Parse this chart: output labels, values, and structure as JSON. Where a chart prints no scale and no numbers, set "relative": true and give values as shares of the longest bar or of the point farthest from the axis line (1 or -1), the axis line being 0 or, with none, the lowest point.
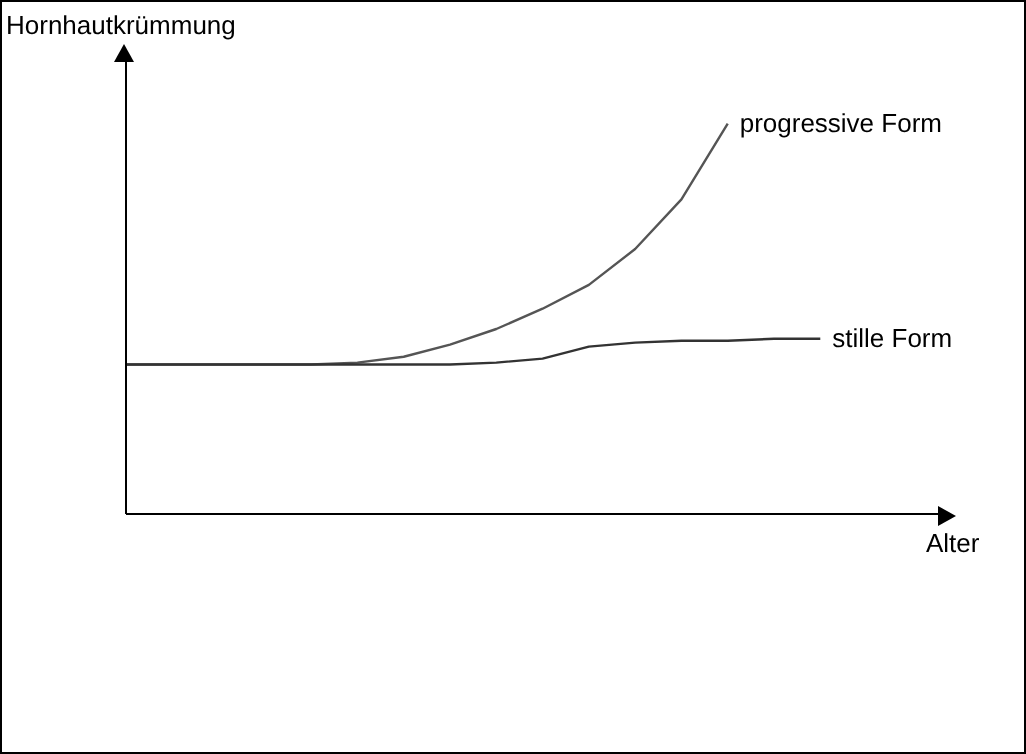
{
  "chart_data": {
    "type": "line",
    "relative": true,
    "xlabel": "Alter",
    "ylabel": "Hornhautkrümmung",
    "marker": "none",
    "categories": [
      null,
      null,
      null,
      null,
      null,
      null,
      null,
      null,
      null,
      null,
      null,
      null,
      null,
      null,
      null,
      null
    ],
    "series": [
      {
        "name": "progressive Form",
        "color": "#555555",
        "values": [
          0.383,
          0.383,
          0.383,
          0.383,
          0.383,
          0.388,
          0.403,
          0.434,
          0.474,
          0.526,
          0.587,
          0.679,
          0.806,
          1.0,
          null,
          null
        ]
      },
      {
        "name": "stille Form",
        "color": "#333333",
        "values": [
          0.383,
          0.383,
          0.383,
          0.383,
          0.383,
          0.383,
          0.383,
          0.383,
          0.388,
          0.398,
          0.429,
          0.439,
          0.444,
          0.444,
          0.449,
          0.449
        ]
      }
    ]
  }
}
